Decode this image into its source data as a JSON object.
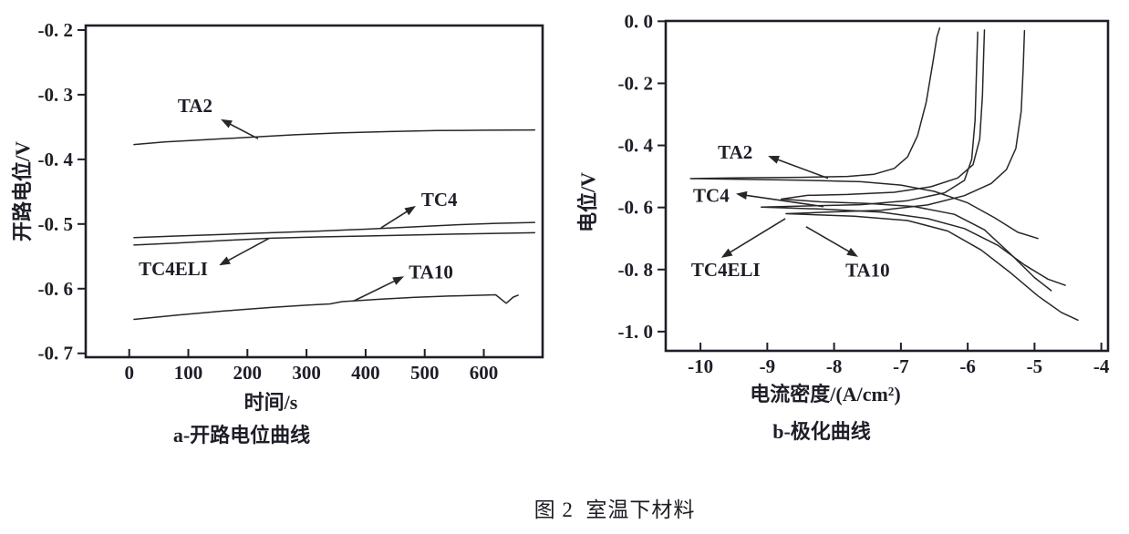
{
  "figure": {
    "caption": "图 2  室温下材料"
  },
  "colors": {
    "background": "#ffffff",
    "ink": "#1e1e28",
    "curve": "#2a2626"
  },
  "chart_data": [
    {
      "id": "a",
      "type": "line",
      "title": "a-开路电位曲线",
      "xlabel": "时间/s",
      "ylabel": "开路电位/V",
      "xlim": [
        -73.6,
        699.5
      ],
      "ylim": [
        -0.706,
        -0.193
      ],
      "grid": false,
      "legend": "none (inline arrow annotations)",
      "xticks": [
        {
          "v": 0,
          "label": "0"
        },
        {
          "v": 100,
          "label": "100"
        },
        {
          "v": 200,
          "label": "200"
        },
        {
          "v": 300,
          "label": "300"
        },
        {
          "v": 400,
          "label": "400"
        },
        {
          "v": 500,
          "label": "500"
        },
        {
          "v": 600,
          "label": "600"
        }
      ],
      "yticks": [
        {
          "v": -0.2,
          "label": "-0. 2"
        },
        {
          "v": -0.3,
          "label": "-0. 3"
        },
        {
          "v": -0.4,
          "label": "-0. 4"
        },
        {
          "v": -0.5,
          "label": "-0. 5"
        },
        {
          "v": -0.6,
          "label": "-0. 6"
        },
        {
          "v": -0.7,
          "label": "-0. 7"
        }
      ],
      "series": [
        {
          "name": "TA2",
          "points": [
            [
              8,
              -0.377
            ],
            [
              60,
              -0.373
            ],
            [
              120,
              -0.37
            ],
            [
              200,
              -0.366
            ],
            [
              280,
              -0.362
            ],
            [
              360,
              -0.359
            ],
            [
              440,
              -0.357
            ],
            [
              520,
              -0.3555
            ],
            [
              600,
              -0.355
            ],
            [
              686,
              -0.3545
            ]
          ]
        },
        {
          "name": "TC4",
          "points": [
            [
              8,
              -0.521
            ],
            [
              80,
              -0.5185
            ],
            [
              160,
              -0.516
            ],
            [
              240,
              -0.5135
            ],
            [
              320,
              -0.511
            ],
            [
              400,
              -0.508
            ],
            [
              480,
              -0.5045
            ],
            [
              560,
              -0.501
            ],
            [
              620,
              -0.499
            ],
            [
              686,
              -0.4975
            ]
          ]
        },
        {
          "name": "TC4ELI",
          "points": [
            [
              8,
              -0.5325
            ],
            [
              80,
              -0.5295
            ],
            [
              160,
              -0.5255
            ],
            [
              240,
              -0.522
            ],
            [
              320,
              -0.52
            ],
            [
              400,
              -0.5185
            ],
            [
              480,
              -0.517
            ],
            [
              560,
              -0.5155
            ],
            [
              620,
              -0.5145
            ],
            [
              686,
              -0.5135
            ]
          ]
        },
        {
          "name": "TA10",
          "points": [
            [
              8,
              -0.6475
            ],
            [
              80,
              -0.641
            ],
            [
              160,
              -0.6345
            ],
            [
              240,
              -0.629
            ],
            [
              300,
              -0.6255
            ],
            [
              340,
              -0.6235
            ],
            [
              360,
              -0.62
            ],
            [
              420,
              -0.6165
            ],
            [
              480,
              -0.6135
            ],
            [
              540,
              -0.6115
            ],
            [
              600,
              -0.61
            ],
            [
              620,
              -0.6095
            ],
            [
              638,
              -0.6225
            ],
            [
              650,
              -0.613
            ],
            [
              658,
              -0.61
            ]
          ]
        }
      ],
      "annotations": [
        {
          "text": "TA2",
          "label_pos": [
            82,
            -0.317
          ],
          "arrow_tip": [
            155,
            -0.338
          ],
          "line_end": [
            218,
            -0.368
          ]
        },
        {
          "text": "TC4",
          "label_pos": [
            494,
            -0.462
          ],
          "arrow_tip": [
            485,
            -0.472
          ],
          "line_end": [
            426,
            -0.506
          ]
        },
        {
          "text": "TC4ELI",
          "label_pos": [
            16,
            -0.569
          ],
          "arrow_tip": [
            152,
            -0.564
          ],
          "line_end": [
            237,
            -0.522
          ]
        },
        {
          "text": "TA10",
          "label_pos": [
            473,
            -0.574
          ],
          "arrow_tip": [
            465,
            -0.581
          ],
          "line_end": [
            380,
            -0.619
          ]
        }
      ]
    },
    {
      "id": "b",
      "type": "line",
      "title": "b-极化曲线",
      "xlabel": "电流密度/(A/cm²)",
      "ylabel": "电位/V",
      "xlim": [
        -10.52,
        -3.9
      ],
      "ylim": [
        -1.062,
        0.001
      ],
      "grid": false,
      "legend": "none (inline arrow annotations)",
      "xticks": [
        {
          "v": -10,
          "label": "-10"
        },
        {
          "v": -9,
          "label": "-9"
        },
        {
          "v": -8,
          "label": "-8"
        },
        {
          "v": -7,
          "label": "-7"
        },
        {
          "v": -6,
          "label": "-6"
        },
        {
          "v": -5,
          "label": "-5"
        },
        {
          "v": -4,
          "label": "-4"
        }
      ],
      "yticks": [
        {
          "v": 0.0,
          "label": "0. 0"
        },
        {
          "v": -0.2,
          "label": "-0. 2"
        },
        {
          "v": -0.4,
          "label": "-0. 4"
        },
        {
          "v": -0.6,
          "label": "-0. 6"
        },
        {
          "v": -0.8,
          "label": "-0. 8"
        },
        {
          "v": -1.0,
          "label": "-1. 0"
        }
      ],
      "series": [
        {
          "name": "TA2",
          "points": [
            [
              -4.95,
              -0.7
            ],
            [
              -5.25,
              -0.68
            ],
            [
              -5.6,
              -0.633
            ],
            [
              -6.0,
              -0.585
            ],
            [
              -6.5,
              -0.548
            ],
            [
              -7.0,
              -0.528
            ],
            [
              -7.6,
              -0.517
            ],
            [
              -8.5,
              -0.512
            ],
            [
              -9.4,
              -0.509
            ],
            [
              -10.15,
              -0.507
            ],
            [
              -9.4,
              -0.5045
            ],
            [
              -8.5,
              -0.503
            ],
            [
              -7.8,
              -0.5
            ],
            [
              -7.4,
              -0.493
            ],
            [
              -7.1,
              -0.474
            ],
            [
              -6.9,
              -0.437
            ],
            [
              -6.75,
              -0.368
            ],
            [
              -6.62,
              -0.26
            ],
            [
              -6.52,
              -0.13
            ],
            [
              -6.46,
              -0.05
            ],
            [
              -6.42,
              -0.022
            ]
          ]
        },
        {
          "name": "TC4",
          "points": [
            [
              -4.75,
              -0.868
            ],
            [
              -5.0,
              -0.826
            ],
            [
              -5.35,
              -0.752
            ],
            [
              -5.75,
              -0.672
            ],
            [
              -6.2,
              -0.622
            ],
            [
              -6.8,
              -0.597
            ],
            [
              -7.5,
              -0.587
            ],
            [
              -8.2,
              -0.582
            ],
            [
              -8.79,
              -0.573
            ],
            [
              -8.4,
              -0.561
            ],
            [
              -7.8,
              -0.558
            ],
            [
              -7.1,
              -0.551
            ],
            [
              -6.55,
              -0.533
            ],
            [
              -6.15,
              -0.505
            ],
            [
              -5.92,
              -0.462
            ],
            [
              -5.82,
              -0.38
            ],
            [
              -5.78,
              -0.24
            ],
            [
              -5.76,
              -0.1
            ],
            [
              -5.75,
              -0.028
            ]
          ]
        },
        {
          "name": "TC4ELI",
          "points": [
            [
              -4.54,
              -0.851
            ],
            [
              -4.8,
              -0.831
            ],
            [
              -5.15,
              -0.785
            ],
            [
              -5.55,
              -0.722
            ],
            [
              -6.05,
              -0.668
            ],
            [
              -6.6,
              -0.636
            ],
            [
              -7.3,
              -0.615
            ],
            [
              -8.2,
              -0.605
            ],
            [
              -9.09,
              -0.599
            ],
            [
              -8.4,
              -0.595
            ],
            [
              -7.6,
              -0.591
            ],
            [
              -6.9,
              -0.578
            ],
            [
              -6.35,
              -0.553
            ],
            [
              -6.05,
              -0.513
            ],
            [
              -5.94,
              -0.445
            ],
            [
              -5.89,
              -0.32
            ],
            [
              -5.87,
              -0.17
            ],
            [
              -5.85,
              -0.035
            ]
          ]
        },
        {
          "name": "TA10",
          "points": [
            [
              -4.35,
              -0.963
            ],
            [
              -4.6,
              -0.938
            ],
            [
              -4.95,
              -0.885
            ],
            [
              -5.35,
              -0.812
            ],
            [
              -5.8,
              -0.737
            ],
            [
              -6.3,
              -0.676
            ],
            [
              -6.9,
              -0.642
            ],
            [
              -7.7,
              -0.628
            ],
            [
              -8.72,
              -0.62
            ],
            [
              -8.1,
              -0.615
            ],
            [
              -7.3,
              -0.609
            ],
            [
              -6.6,
              -0.592
            ],
            [
              -6.05,
              -0.562
            ],
            [
              -5.65,
              -0.523
            ],
            [
              -5.42,
              -0.478
            ],
            [
              -5.28,
              -0.41
            ],
            [
              -5.2,
              -0.29
            ],
            [
              -5.17,
              -0.15
            ],
            [
              -5.15,
              -0.03
            ]
          ]
        }
      ],
      "annotations": [
        {
          "text": "TA2",
          "label_pos": [
            -9.74,
            -0.422
          ],
          "arrow_tip": [
            -8.99,
            -0.434
          ],
          "line_end": [
            -8.09,
            -0.506
          ]
        },
        {
          "text": "TC4",
          "label_pos": [
            -10.11,
            -0.562
          ],
          "arrow_tip": [
            -9.47,
            -0.556
          ],
          "line_end": [
            -8.16,
            -0.597
          ]
        },
        {
          "text": "TC4ELI",
          "label_pos": [
            -10.14,
            -0.8
          ],
          "arrow_tip": [
            -9.69,
            -0.762
          ],
          "line_end": [
            -8.73,
            -0.636
          ]
        },
        {
          "text": "TA10",
          "label_pos": [
            -7.83,
            -0.802
          ],
          "arrow_tip": [
            -7.64,
            -0.759
          ],
          "line_end": [
            -8.42,
            -0.662
          ]
        }
      ]
    }
  ]
}
